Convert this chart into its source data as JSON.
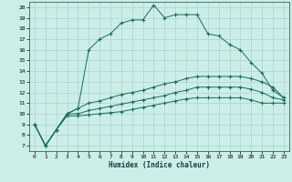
{
  "xlabel": "Humidex (Indice chaleur)",
  "bg_color": "#cceaе8",
  "grid_color": "#b0d8d4",
  "line_color": "#1a6b5a",
  "xlim": [
    -0.5,
    23.5
  ],
  "ylim": [
    6.5,
    20.5
  ],
  "series": [
    {
      "x": [
        0,
        1,
        2,
        3,
        4,
        5,
        6,
        7,
        8,
        9,
        10,
        11,
        12,
        13,
        14,
        15,
        16,
        17,
        18,
        19,
        20,
        21,
        22,
        23
      ],
      "y": [
        9.0,
        7.0,
        8.5,
        10.0,
        10.5,
        16.0,
        17.0,
        17.5,
        18.5,
        18.8,
        18.8,
        20.2,
        19.0,
        19.3,
        19.3,
        19.3,
        17.5,
        17.3,
        16.5,
        16.0,
        14.8,
        13.8,
        12.2,
        11.5
      ]
    },
    {
      "x": [
        0,
        1,
        2,
        3,
        4,
        5,
        6,
        7,
        8,
        9,
        10,
        11,
        12,
        13,
        14,
        15,
        16,
        17,
        18,
        19,
        20,
        21,
        22,
        23
      ],
      "y": [
        9.0,
        7.0,
        8.5,
        10.0,
        10.5,
        11.0,
        11.2,
        11.5,
        11.8,
        12.0,
        12.2,
        12.5,
        12.8,
        13.0,
        13.3,
        13.5,
        13.5,
        13.5,
        13.5,
        13.5,
        13.3,
        13.0,
        12.5,
        11.5
      ]
    },
    {
      "x": [
        0,
        1,
        2,
        3,
        4,
        5,
        6,
        7,
        8,
        9,
        10,
        11,
        12,
        13,
        14,
        15,
        16,
        17,
        18,
        19,
        20,
        21,
        22,
        23
      ],
      "y": [
        9.0,
        7.0,
        8.5,
        10.0,
        10.0,
        10.3,
        10.5,
        10.7,
        10.9,
        11.1,
        11.3,
        11.5,
        11.7,
        12.0,
        12.2,
        12.5,
        12.5,
        12.5,
        12.5,
        12.5,
        12.3,
        12.0,
        11.5,
        11.3
      ]
    },
    {
      "x": [
        0,
        1,
        2,
        3,
        4,
        5,
        6,
        7,
        8,
        9,
        10,
        11,
        12,
        13,
        14,
        15,
        16,
        17,
        18,
        19,
        20,
        21,
        22,
        23
      ],
      "y": [
        9.0,
        7.0,
        8.5,
        9.8,
        9.8,
        9.9,
        10.0,
        10.1,
        10.2,
        10.4,
        10.6,
        10.8,
        11.0,
        11.2,
        11.4,
        11.5,
        11.5,
        11.5,
        11.5,
        11.5,
        11.3,
        11.0,
        11.0,
        11.0
      ]
    }
  ],
  "xticks": [
    0,
    1,
    2,
    3,
    4,
    5,
    6,
    7,
    8,
    9,
    10,
    11,
    12,
    13,
    14,
    15,
    16,
    17,
    18,
    19,
    20,
    21,
    22,
    23
  ],
  "yticks": [
    7,
    8,
    9,
    10,
    11,
    12,
    13,
    14,
    15,
    16,
    17,
    18,
    19,
    20
  ]
}
